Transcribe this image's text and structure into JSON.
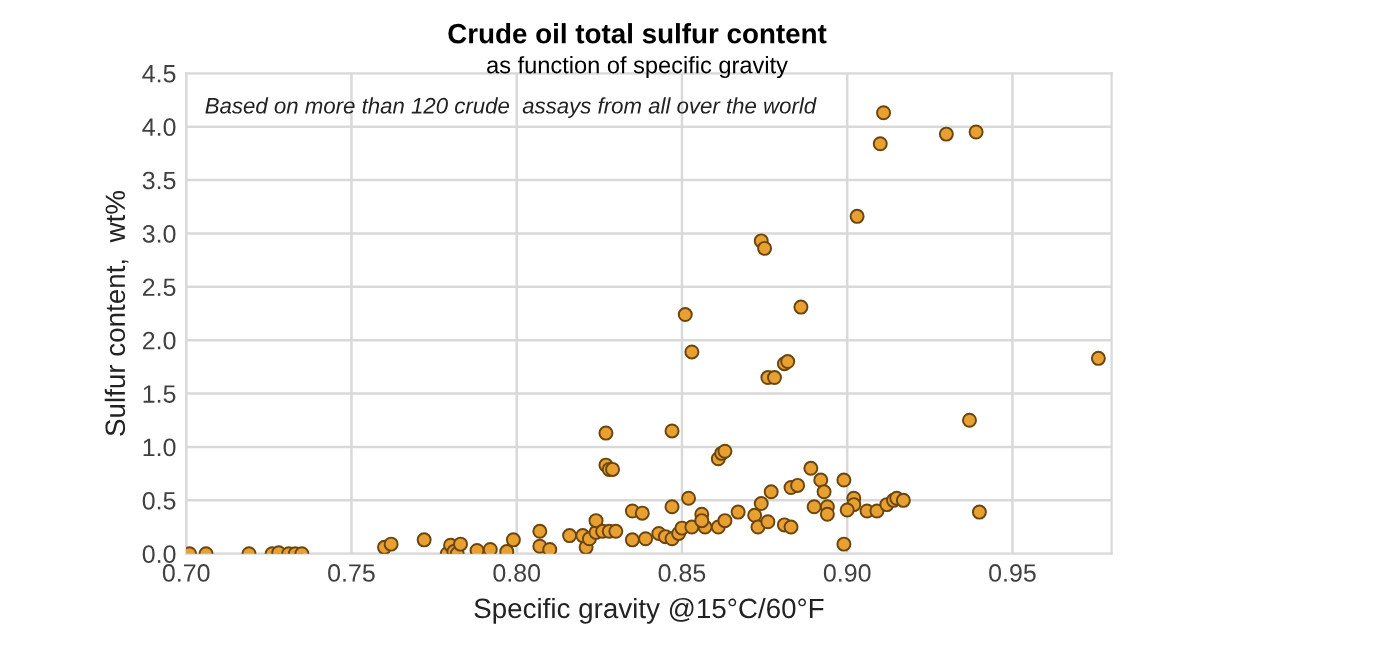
{
  "chart_data": {
    "type": "scatter",
    "title": "Crude oil total sulfur content",
    "subtitle": "as function of specific gravity",
    "xlabel": "Specific gravity @15°C/60°F",
    "ylabel": "Sulfur content,  wt%",
    "annotations": [
      "Based on more than 120 crude  assays from all over the world"
    ],
    "series": [
      {
        "color": "#e8a030",
        "x": [
          0.701,
          0.706,
          0.719,
          0.726,
          0.728,
          0.731,
          0.733,
          0.735,
          0.76,
          0.762,
          0.772,
          0.779,
          0.78,
          0.781,
          0.782,
          0.783,
          0.788,
          0.792,
          0.797,
          0.799,
          0.807,
          0.807,
          0.81,
          0.816,
          0.82,
          0.821,
          0.822,
          0.824,
          0.824,
          0.826,
          0.828,
          0.83,
          0.827,
          0.827,
          0.828,
          0.829,
          0.835,
          0.835,
          0.838,
          0.839,
          0.843,
          0.845,
          0.847,
          0.847,
          0.847,
          0.849,
          0.85,
          0.852,
          0.851,
          0.853,
          0.853,
          0.856,
          0.857,
          0.861,
          0.861,
          0.862,
          0.863,
          0.863,
          0.867,
          0.872,
          0.873,
          0.874,
          0.874,
          0.875,
          0.876,
          0.878,
          0.876,
          0.877,
          0.911,
          0.91,
          0.93,
          0.939,
          0.903,
          0.886,
          0.881,
          0.882,
          0.976,
          0.937,
          0.889,
          0.892,
          0.899,
          0.883,
          0.885,
          0.893,
          0.902,
          0.902,
          0.894,
          0.89,
          0.894,
          0.9,
          0.906,
          0.909,
          0.912,
          0.914,
          0.915,
          0.917,
          0.94,
          0.899,
          0.881,
          0.883,
          0.856
        ],
        "values": [
          0,
          0,
          0,
          0,
          0.01,
          0,
          0,
          0,
          0.06,
          0.09,
          0.13,
          0,
          0.08,
          0.02,
          0,
          0.09,
          0.03,
          0.04,
          0.02,
          0.13,
          0.21,
          0.07,
          0.04,
          0.17,
          0.17,
          0.06,
          0.14,
          0.2,
          0.31,
          0.21,
          0.21,
          0.21,
          1.13,
          0.83,
          0.79,
          0.79,
          0.13,
          0.4,
          0.38,
          0.14,
          0.19,
          0.16,
          1.15,
          0.44,
          0.14,
          0.19,
          0.24,
          0.52,
          2.24,
          1.89,
          0.25,
          0.37,
          0.25,
          0.25,
          0.89,
          0.94,
          0.96,
          0.31,
          0.39,
          0.36,
          0.25,
          0.47,
          2.93,
          2.86,
          1.65,
          1.65,
          0.3,
          0.58,
          4.13,
          3.84,
          3.93,
          3.95,
          3.16,
          2.31,
          1.78,
          1.8,
          1.83,
          1.25,
          0.8,
          0.69,
          0.69,
          0.62,
          0.64,
          0.58,
          0.52,
          0.46,
          0.44,
          0.44,
          0.37,
          0.41,
          0.4,
          0.4,
          0.46,
          0.5,
          0.52,
          0.5,
          0.39,
          0.09,
          0.27,
          0.25,
          0.31
        ]
      }
    ],
    "marker": "circle",
    "xlim": [
      0.7,
      0.98
    ],
    "ylim": [
      0,
      4.5
    ],
    "xticks": [
      {
        "value": 0.7,
        "label": "0.70"
      },
      0.75,
      {
        "value": 0.8,
        "label": "0.80"
      },
      0.85,
      {
        "value": 0.9,
        "label": "0.90"
      },
      0.95
    ],
    "yticks": [
      {
        "value": 0,
        "label": "0.0"
      },
      0.5,
      {
        "value": 1,
        "label": "1.0"
      },
      1.5,
      {
        "value": 2,
        "label": "2.0"
      },
      2.5,
      {
        "value": 3,
        "label": "3.0"
      },
      3.5,
      {
        "value": 4,
        "label": "4.0"
      },
      4.5
    ],
    "grid": true
  }
}
